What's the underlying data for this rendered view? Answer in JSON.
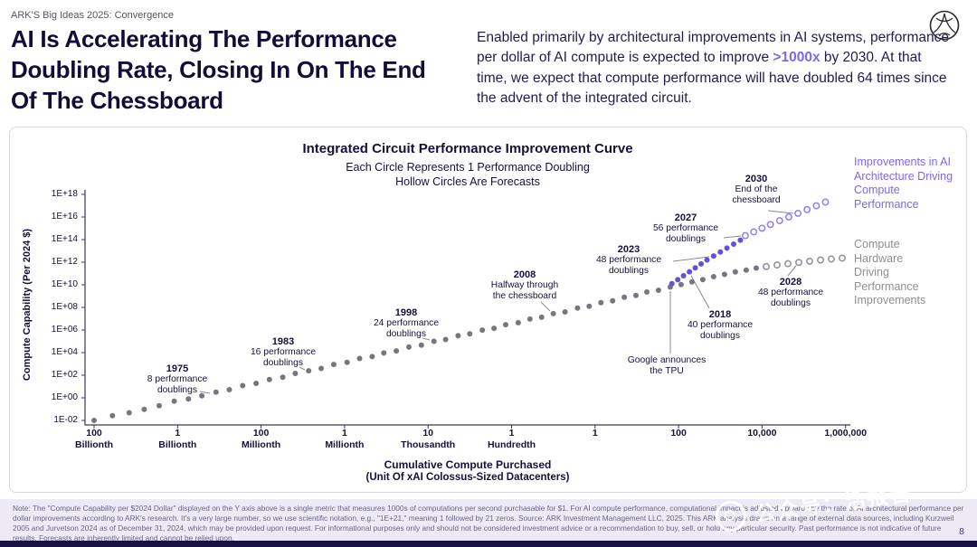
{
  "header": {
    "eyebrow": "ARK'S Big Ideas 2025: Convergence",
    "title": "AI Is Accelerating The Performance Doubling Rate, Closing In On The End Of The Chessboard",
    "paragraph_before": "Enabled primarily by architectural improvements in AI systems, performance per dollar of AI compute is expected to improve ",
    "paragraph_highlight": ">1000x",
    "paragraph_after": " by 2030. At that time, we expect that compute performance will have doubled 64 times since the advent of the integrated circuit."
  },
  "chart": {
    "title": "Integrated Circuit Performance Improvement Curve",
    "subtitle1": "Each Circle Represents 1 Performance Doubling",
    "subtitle2": "Hollow Circles Are Forecasts",
    "legend_architecture": "Improvements in AI Architecture Driving Compute Performance",
    "legend_hardware": "Compute Hardware Driving Performance Improvements",
    "y_axis_label": "Compute Capability (Per 2024 $)",
    "x_axis_label_line1": "Cumulative Compute Purchased",
    "x_axis_label_line2": "(Unit Of xAI Colossus-Sized Datacenters)"
  },
  "chart_data": {
    "type": "scatter",
    "encoding_note": "points are [x-tick-position (0-9 across labeled x ticks), log10(compute capability per 2024 $)]",
    "x_ticks": [
      [
        "100",
        "Billionth"
      ],
      [
        "1",
        "Billionth"
      ],
      [
        "100",
        "Millionth"
      ],
      [
        "1",
        "Millionth"
      ],
      [
        "10",
        "Thousandth"
      ],
      [
        "1",
        "Hundredth"
      ],
      [
        "1",
        ""
      ],
      [
        "100",
        ""
      ],
      [
        "10,000",
        ""
      ],
      [
        "1,000,000",
        ""
      ]
    ],
    "y_ticks": [
      "1E+18",
      "1E+16",
      "1E+14",
      "1E+12",
      "1E+10",
      "1E+08",
      "1E+06",
      "1E+04",
      "1E+02",
      "1E+00",
      "1E-02"
    ],
    "ylim": [
      "1E-02",
      "1E+18"
    ],
    "grid": false,
    "series": [
      {
        "name": "hardware-actual",
        "style": "solid",
        "color": "#77757f",
        "points": [
          [
            0.0,
            -2.0
          ],
          [
            0.22,
            -1.58
          ],
          [
            0.42,
            -1.32
          ],
          [
            0.6,
            -1.02
          ],
          [
            0.78,
            -0.7
          ],
          [
            0.96,
            -0.3
          ],
          [
            1.13,
            -0.1
          ],
          [
            1.29,
            0.18
          ],
          [
            1.46,
            0.5
          ],
          [
            1.62,
            0.72
          ],
          [
            1.78,
            1.08
          ],
          [
            1.94,
            1.28
          ],
          [
            2.1,
            1.62
          ],
          [
            2.26,
            1.82
          ],
          [
            2.41,
            2.16
          ],
          [
            2.57,
            2.39
          ],
          [
            2.72,
            2.6
          ],
          [
            2.87,
            2.95
          ],
          [
            3.03,
            3.14
          ],
          [
            3.18,
            3.48
          ],
          [
            3.33,
            3.65
          ],
          [
            3.47,
            3.97
          ],
          [
            3.62,
            4.15
          ],
          [
            3.77,
            4.49
          ],
          [
            3.92,
            4.66
          ],
          [
            4.07,
            5.0
          ],
          [
            4.21,
            5.16
          ],
          [
            4.36,
            5.5
          ],
          [
            4.5,
            5.66
          ],
          [
            4.65,
            5.99
          ],
          [
            4.79,
            6.15
          ],
          [
            4.93,
            6.47
          ],
          [
            5.08,
            6.65
          ],
          [
            5.22,
            6.97
          ],
          [
            5.36,
            7.13
          ],
          [
            5.5,
            7.45
          ],
          [
            5.64,
            7.6
          ],
          [
            5.79,
            7.94
          ],
          [
            5.93,
            8.1
          ],
          [
            6.07,
            8.42
          ],
          [
            6.21,
            8.58
          ],
          [
            6.35,
            8.9
          ],
          [
            6.49,
            9.06
          ],
          [
            6.62,
            9.36
          ],
          [
            6.76,
            9.52
          ],
          [
            6.9,
            9.8
          ],
          [
            7.03,
            10.02
          ],
          [
            7.16,
            10.26
          ],
          [
            7.29,
            10.46
          ],
          [
            7.42,
            10.72
          ],
          [
            7.55,
            10.92
          ],
          [
            7.68,
            11.14
          ],
          [
            7.81,
            11.3
          ],
          [
            7.93,
            11.48
          ]
        ]
      },
      {
        "name": "hardware-forecast",
        "style": "hollow",
        "color": "#908e99",
        "points": [
          [
            8.05,
            11.62
          ],
          [
            8.18,
            11.75
          ],
          [
            8.31,
            11.87
          ],
          [
            8.44,
            11.98
          ],
          [
            8.57,
            12.09
          ],
          [
            8.7,
            12.19
          ],
          [
            8.83,
            12.28
          ],
          [
            8.96,
            12.36
          ]
        ]
      },
      {
        "name": "architecture-actual",
        "style": "solid",
        "color": "#6052d4",
        "points": [
          [
            6.92,
            10.1
          ],
          [
            6.99,
            10.45
          ],
          [
            7.06,
            10.8
          ],
          [
            7.13,
            11.15
          ],
          [
            7.2,
            11.5
          ],
          [
            7.27,
            11.85
          ],
          [
            7.34,
            12.2
          ],
          [
            7.42,
            12.55
          ],
          [
            7.5,
            12.9
          ],
          [
            7.58,
            13.25
          ],
          [
            7.66,
            13.6
          ],
          [
            7.74,
            13.95
          ]
        ]
      },
      {
        "name": "architecture-forecast",
        "style": "hollow",
        "color": "#8f7ef2",
        "points": [
          [
            7.8,
            14.35
          ],
          [
            7.9,
            14.68
          ],
          [
            8.0,
            15.01
          ],
          [
            8.1,
            15.34
          ],
          [
            8.21,
            15.67
          ],
          [
            8.32,
            16.0
          ],
          [
            8.43,
            16.33
          ],
          [
            8.54,
            16.66
          ],
          [
            8.65,
            16.99
          ],
          [
            8.76,
            17.32
          ]
        ]
      }
    ],
    "annotations": [
      {
        "year": "1975",
        "line1": "8 performance",
        "line2": "doublings"
      },
      {
        "year": "1983",
        "line1": "16 performance",
        "line2": "doublings"
      },
      {
        "year": "1998",
        "line1": "24 performance",
        "line2": "doublings"
      },
      {
        "year": "2008",
        "line1": "Halfway through",
        "line2": "the chessboard"
      },
      {
        "year": "2023",
        "line1": "48 performance",
        "line2": "doublings"
      },
      {
        "year": "2027",
        "line1": "56 performance",
        "line2": "doublings"
      },
      {
        "year": "2030",
        "line1": "End of the",
        "line2": "chessboard"
      },
      {
        "year": "2018",
        "line1": "40 performance",
        "line2": "doublings"
      },
      {
        "year": "2028",
        "line1": "48 performance",
        "line2": "doublings"
      },
      {
        "year": "",
        "line1": "Google announces",
        "line2": "the TPU"
      }
    ]
  },
  "footer": {
    "note": "Note: The \"Compute Capability per $2024 Dollar\" displayed on the Y axis above is a single metric that measures 1000s of computations per second purchasable for $1. For AI compute performance, computational impact is adjusted upwards by the rate of AI architectural performance per dollar improvements according to ARK's research. It's a very large number, so we use scientific notation, e.g., \"1E+21,\" meaning 1 followed by 21 zeros. Source: ARK Investment Management LLC, 2025. This ARK analysis draws on a range of external data sources, including Kurzweil 2005 and Jurvetson 2024 as of December 31, 2024, which may be provided upon request. For informational purposes only and should not be considered investment advice or a recommendation to buy, sell, or hold any particular security. Past performance is not indicative of future results. Forecasts are inherently limited and cannot be relied upon.",
    "page_number": "8"
  },
  "watermark": {
    "text": "公众号：活报告"
  }
}
